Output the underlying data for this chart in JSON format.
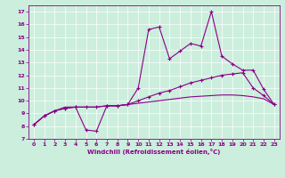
{
  "title": "",
  "xlabel": "Windchill (Refroidissement éolien,°C)",
  "ylabel": "",
  "bg_color": "#cceedd",
  "line_color": "#880088",
  "xlim": [
    -0.5,
    23.5
  ],
  "ylim": [
    7,
    17.5
  ],
  "yticks": [
    7,
    8,
    9,
    10,
    11,
    12,
    13,
    14,
    15,
    16,
    17
  ],
  "xticks": [
    0,
    1,
    2,
    3,
    4,
    5,
    6,
    7,
    8,
    9,
    10,
    11,
    12,
    13,
    14,
    15,
    16,
    17,
    18,
    19,
    20,
    21,
    22,
    23
  ],
  "line1_x": [
    0,
    1,
    2,
    3,
    4,
    5,
    6,
    7,
    8,
    9,
    10,
    11,
    12,
    13,
    14,
    15,
    16,
    17,
    18,
    19,
    20,
    21,
    22,
    23
  ],
  "line1_y": [
    8.1,
    8.8,
    9.2,
    9.4,
    9.5,
    7.7,
    7.6,
    9.6,
    9.6,
    9.7,
    11.0,
    15.6,
    15.8,
    13.3,
    13.9,
    14.5,
    14.3,
    17.0,
    13.5,
    12.9,
    12.4,
    12.4,
    10.9,
    9.7
  ],
  "line2_x": [
    0,
    1,
    2,
    3,
    4,
    5,
    6,
    7,
    8,
    9,
    10,
    11,
    12,
    13,
    14,
    15,
    16,
    17,
    18,
    19,
    20,
    21,
    22,
    23
  ],
  "line2_y": [
    8.1,
    8.8,
    9.2,
    9.4,
    9.5,
    9.5,
    9.5,
    9.6,
    9.6,
    9.7,
    10.0,
    10.3,
    10.6,
    10.8,
    11.1,
    11.4,
    11.6,
    11.8,
    12.0,
    12.1,
    12.2,
    11.0,
    10.4,
    9.7
  ],
  "line3_x": [
    0,
    1,
    2,
    3,
    4,
    5,
    6,
    7,
    8,
    9,
    10,
    11,
    12,
    13,
    14,
    15,
    16,
    17,
    18,
    19,
    20,
    21,
    22,
    23
  ],
  "line3_y": [
    8.1,
    8.8,
    9.2,
    9.5,
    9.5,
    9.5,
    9.5,
    9.6,
    9.6,
    9.7,
    9.8,
    9.9,
    10.0,
    10.1,
    10.2,
    10.3,
    10.35,
    10.4,
    10.45,
    10.45,
    10.4,
    10.3,
    10.15,
    9.7
  ]
}
